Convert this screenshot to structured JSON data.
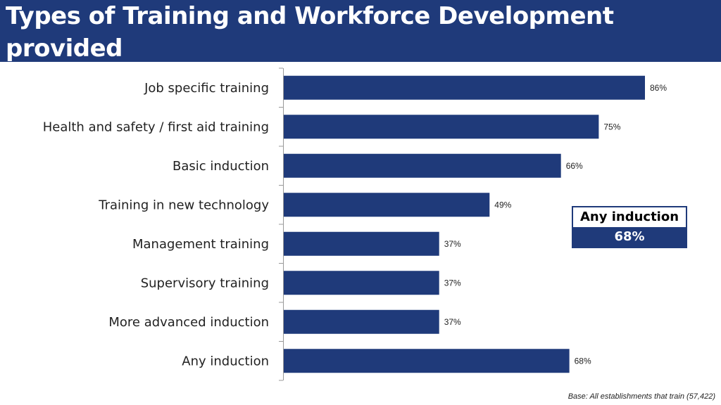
{
  "title": "Types of Training and Workforce Development provided",
  "callout": {
    "label": "Any induction",
    "value": "68%"
  },
  "base_note": "Base: All establishments that train (57,422)",
  "colors": {
    "title_bar": "#1f3a7a",
    "bar": "#1f3a7a",
    "callout_value_bg": "#1f3a7a"
  },
  "chart_data": {
    "type": "bar",
    "orientation": "horizontal",
    "title": "",
    "xlabel": "",
    "ylabel": "",
    "xlim": [
      0,
      100
    ],
    "grid": false,
    "categories": [
      "Job specific training",
      "Health and safety / first aid training",
      "Basic induction",
      "Training in new technology",
      "Management training",
      "Supervisory training",
      "More advanced induction",
      "Any induction"
    ],
    "values": [
      86,
      75,
      66,
      49,
      37,
      37,
      37,
      68
    ],
    "value_labels": [
      "86%",
      "75%",
      "66%",
      "49%",
      "37%",
      "37%",
      "37%",
      "68%"
    ]
  }
}
